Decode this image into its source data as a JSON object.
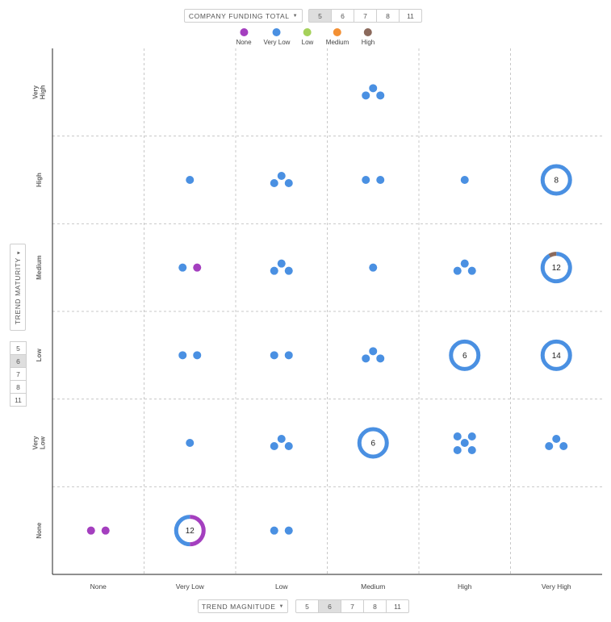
{
  "top_controls": {
    "dropdown_label": "COMPANY FUNDING TOTAL",
    "options": [
      "5",
      "6",
      "7",
      "8",
      "11"
    ],
    "selected": "5"
  },
  "left_controls": {
    "dropdown_label": "TREND MATURITY",
    "options": [
      "5",
      "6",
      "7",
      "8",
      "11"
    ],
    "selected": "6"
  },
  "bottom_controls": {
    "dropdown_label": "TREND MAGNITUDE",
    "options": [
      "5",
      "6",
      "7",
      "8",
      "11"
    ],
    "selected": "6"
  },
  "chart_data": {
    "type": "scatter",
    "x_categories": [
      "None",
      "Very Low",
      "Low",
      "Medium",
      "High",
      "Very High"
    ],
    "y_categories": [
      "None",
      "Very Low",
      "Low",
      "Medium",
      "High",
      "Very High"
    ],
    "legend": [
      {
        "name": "None",
        "color": "#a43fbf"
      },
      {
        "name": "Very Low",
        "color": "#4a90e2"
      },
      {
        "name": "Low",
        "color": "#a5d15a"
      },
      {
        "name": "Medium",
        "color": "#f39034"
      },
      {
        "name": "High",
        "color": "#8b6a5c"
      }
    ],
    "grid": true,
    "cells": [
      {
        "x": "Medium",
        "y": "Very High",
        "counts": {
          "Very Low": 3
        }
      },
      {
        "x": "Very Low",
        "y": "High",
        "counts": {
          "Very Low": 1
        }
      },
      {
        "x": "Low",
        "y": "High",
        "counts": {
          "Very Low": 3
        }
      },
      {
        "x": "Medium",
        "y": "High",
        "counts": {
          "Very Low": 2
        }
      },
      {
        "x": "High",
        "y": "High",
        "counts": {
          "Very Low": 1
        }
      },
      {
        "x": "Very High",
        "y": "High",
        "counts": {
          "Very Low": 8
        },
        "total": "8"
      },
      {
        "x": "Very Low",
        "y": "Medium",
        "counts": {
          "Very Low": 1,
          "None": 1
        }
      },
      {
        "x": "Low",
        "y": "Medium",
        "counts": {
          "Very Low": 3
        }
      },
      {
        "x": "Medium",
        "y": "Medium",
        "counts": {
          "Very Low": 1
        }
      },
      {
        "x": "High",
        "y": "Medium",
        "counts": {
          "Very Low": 3
        }
      },
      {
        "x": "Very High",
        "y": "Medium",
        "counts": {
          "Very Low": 11,
          "High": 1
        },
        "total": "12"
      },
      {
        "x": "Very Low",
        "y": "Low",
        "counts": {
          "Very Low": 2
        }
      },
      {
        "x": "Low",
        "y": "Low",
        "counts": {
          "Very Low": 2
        }
      },
      {
        "x": "Medium",
        "y": "Low",
        "counts": {
          "Very Low": 3
        }
      },
      {
        "x": "High",
        "y": "Low",
        "counts": {
          "Very Low": 6
        },
        "total": "6"
      },
      {
        "x": "Very High",
        "y": "Low",
        "counts": {
          "Very Low": 14
        },
        "total": "14"
      },
      {
        "x": "Very Low",
        "y": "Very Low",
        "counts": {
          "Very Low": 1
        }
      },
      {
        "x": "Low",
        "y": "Very Low",
        "counts": {
          "Very Low": 3
        }
      },
      {
        "x": "Medium",
        "y": "Very Low",
        "counts": {
          "Very Low": 6
        },
        "total": "6"
      },
      {
        "x": "High",
        "y": "Very Low",
        "counts": {
          "Very Low": 5
        }
      },
      {
        "x": "Very High",
        "y": "Very Low",
        "counts": {
          "Very Low": 3
        }
      },
      {
        "x": "None",
        "y": "None",
        "counts": {
          "None": 2
        }
      },
      {
        "x": "Very Low",
        "y": "None",
        "counts": {
          "Very Low": 6,
          "None": 6
        },
        "total": "12"
      },
      {
        "x": "Low",
        "y": "None",
        "counts": {
          "Very Low": 2
        }
      }
    ]
  }
}
